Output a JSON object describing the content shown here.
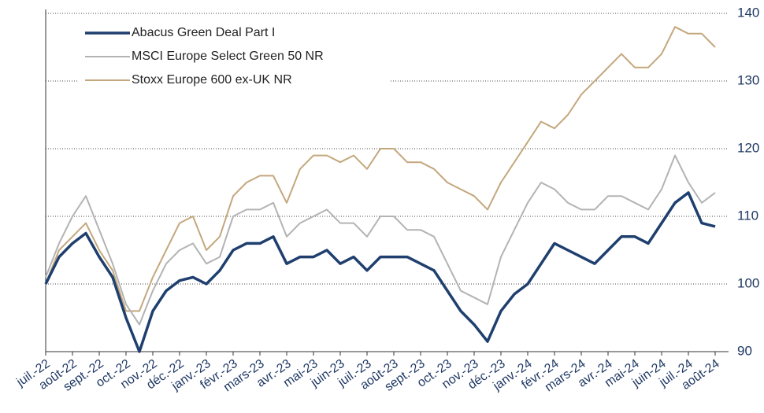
{
  "chart_data": {
    "type": "line",
    "categories": [
      "juil.-22",
      null,
      "août-22",
      null,
      "sept.-22",
      null,
      "oct.-22",
      null,
      "nov.-22",
      null,
      "déc.-22",
      null,
      "janv.-23",
      null,
      "févr.-23",
      null,
      "mars-23",
      null,
      "avr.-23",
      null,
      "mai-23",
      null,
      "juin-23",
      null,
      "juil.-23",
      null,
      "août-23",
      null,
      "sept.-23",
      null,
      "oct.-23",
      null,
      "nov.-23",
      null,
      "déc.-23",
      null,
      "janv.-24",
      null,
      "févr.-24",
      null,
      "mars-24",
      null,
      "avr.-24",
      null,
      "mai-24",
      null,
      "juin-24",
      null,
      "juil.-24",
      null,
      "août-24"
    ],
    "series": [
      {
        "name": "Abacus Green Deal Part I",
        "color": "#1f3f6e",
        "values": [
          100,
          104,
          106,
          107.5,
          104,
          101,
          95,
          90,
          96,
          99,
          100.5,
          101,
          100,
          102,
          105,
          106,
          106,
          107,
          103,
          104,
          104,
          105,
          103,
          104,
          102,
          104,
          104,
          104,
          103,
          102,
          99,
          96,
          94,
          91.5,
          96,
          98.5,
          100,
          103,
          106,
          105,
          104,
          103,
          105,
          107,
          107,
          106,
          109,
          112,
          113.5,
          109,
          108.5
        ]
      },
      {
        "name": "MSCI Europe Select Green 50 NR",
        "color": "#b3b3b3",
        "values": [
          101,
          106,
          110,
          113,
          108,
          103,
          97,
          94,
          99,
          103,
          105,
          106,
          103,
          104,
          110,
          111,
          111,
          112,
          107,
          109,
          110,
          111,
          109,
          109,
          107,
          110,
          110,
          108,
          108,
          107,
          103,
          99,
          98,
          97,
          104,
          108,
          112,
          115,
          114,
          112,
          111,
          111,
          113,
          113,
          112,
          111,
          114,
          119,
          115,
          112,
          113.5
        ]
      },
      {
        "name": "Stoxx Europe 600 ex-UK NR",
        "color": "#c4a77d",
        "values": [
          100,
          105,
          107,
          109,
          105,
          102,
          96,
          96,
          101,
          105,
          109,
          110,
          105,
          107,
          113,
          115,
          116,
          116,
          112,
          117,
          119,
          119,
          118,
          119,
          117,
          120,
          120,
          118,
          118,
          117,
          115,
          114,
          113,
          111,
          115,
          118,
          121,
          124,
          123,
          125,
          128,
          130,
          132,
          134,
          132,
          132,
          134,
          138,
          137,
          137,
          135
        ]
      }
    ],
    "ylim": [
      90,
      140
    ],
    "yticks": [
      90,
      100,
      110,
      120,
      130,
      140
    ],
    "grid": true
  }
}
